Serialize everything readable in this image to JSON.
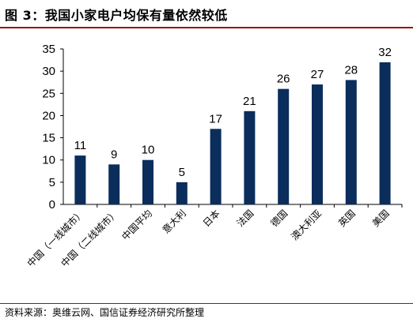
{
  "title": "图 3：我国小家电户均保有量依然较低",
  "source": "资料来源：奥维云网、国信证券经济研究所整理",
  "colors": {
    "bar": "#0a2d5c",
    "accent_rule": "#9a1010",
    "axis": "#000000"
  },
  "chart_data": {
    "type": "bar",
    "categories": [
      "中国（一线城市）",
      "中国（二线城市）",
      "中国平均",
      "意大利",
      "日本",
      "法国",
      "德国",
      "澳大利亚",
      "英国",
      "美国"
    ],
    "values": [
      11,
      9,
      10,
      5,
      17,
      21,
      26,
      27,
      28,
      32
    ],
    "data_labels": [
      "11",
      "9",
      "10",
      "5",
      "17",
      "21",
      "26",
      "27",
      "28",
      "32"
    ],
    "ylim": [
      0,
      35
    ],
    "yticks": [
      0,
      5,
      10,
      15,
      20,
      25,
      30,
      35
    ],
    "grid": false,
    "legend": "none"
  }
}
